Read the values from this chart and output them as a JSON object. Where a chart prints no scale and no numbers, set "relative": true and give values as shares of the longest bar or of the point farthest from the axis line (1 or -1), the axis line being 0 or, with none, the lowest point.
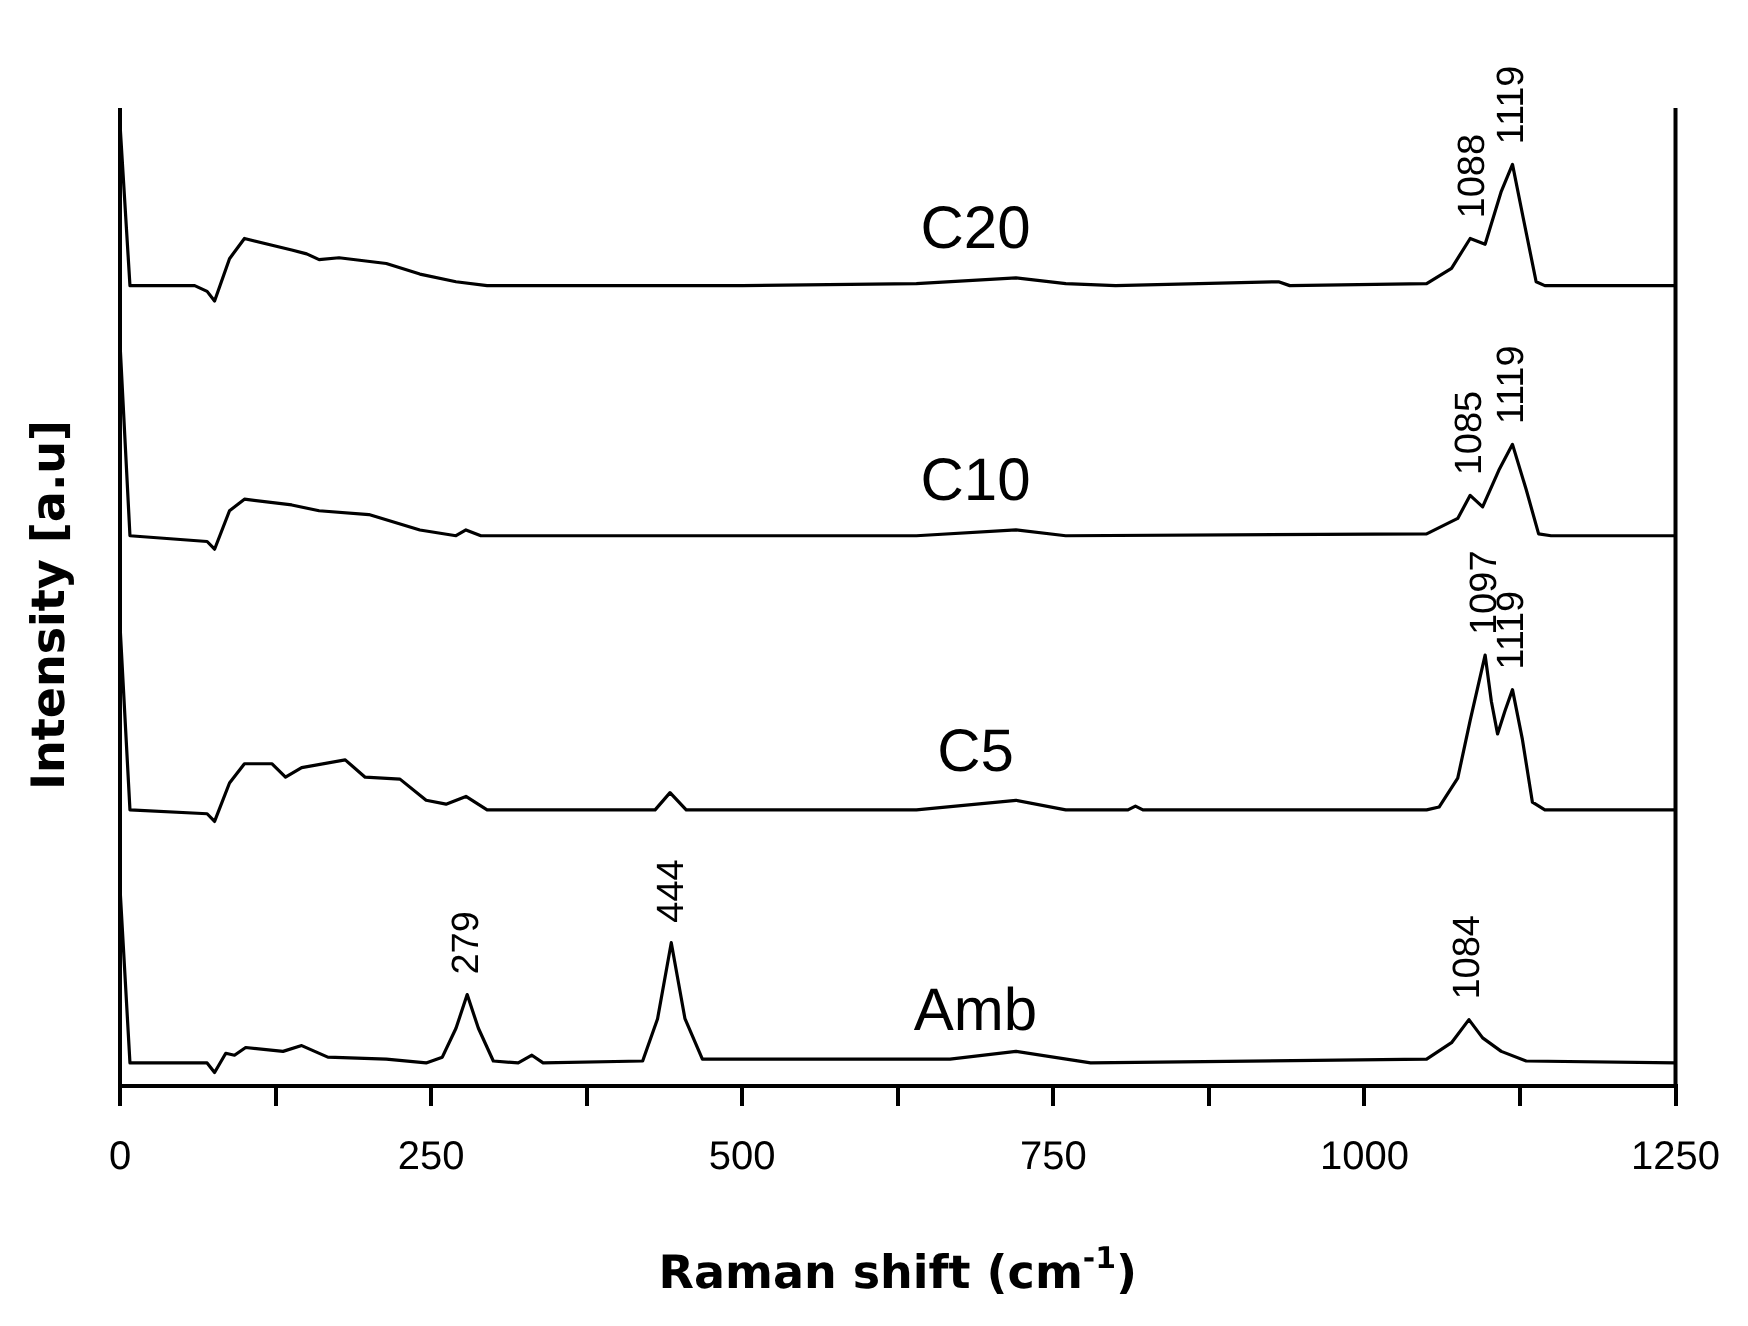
{
  "chart_data": {
    "type": "line",
    "relative": true,
    "xlabel": "Raman shift (cm$^{-1}$)",
    "ylabel": "Intensity [a.u]",
    "xlim": [
      0,
      1250
    ],
    "xticks": [
      0,
      {
        "value": 125,
        "label": null
      },
      250,
      {
        "value": 375,
        "label": null
      },
      500,
      {
        "value": 625,
        "label": null
      },
      750,
      {
        "value": 875,
        "label": null
      },
      1000,
      {
        "value": 1125,
        "label": null
      },
      1250
    ],
    "legend": false,
    "grid": false,
    "marker": "none",
    "line_style": "solid",
    "series": [
      {
        "name": "C20",
        "color": "#000000",
        "x": [
          0,
          8,
          60,
          70,
          76,
          88,
          100,
          138,
          150,
          160,
          176,
          214,
          241,
          270,
          295,
          500,
          640,
          720,
          760,
          800,
          931,
          940,
          1050,
          1070,
          1085,
          1097,
          1110,
          1119,
          1128,
          1138,
          1145,
          1250
        ],
        "values": [
          1.0,
          0.832,
          0.832,
          0.826,
          0.816,
          0.86,
          0.881,
          0.869,
          0.865,
          0.859,
          0.861,
          0.855,
          0.844,
          0.836,
          0.832,
          0.832,
          0.834,
          0.84,
          0.834,
          0.832,
          0.836,
          0.832,
          0.834,
          0.85,
          0.881,
          0.875,
          0.93,
          0.958,
          0.9,
          0.836,
          0.832,
          0.832
        ]
      },
      {
        "name": "C10",
        "color": "#000000",
        "x": [
          0,
          8,
          70,
          76,
          88,
          100,
          138,
          160,
          200,
          241,
          270,
          278,
          290,
          640,
          720,
          760,
          1050,
          1075,
          1085,
          1095,
          1108,
          1119,
          1130,
          1140,
          1150,
          1250
        ],
        "values": [
          0.772,
          0.572,
          0.566,
          0.558,
          0.598,
          0.61,
          0.604,
          0.598,
          0.594,
          0.578,
          0.572,
          0.578,
          0.572,
          0.572,
          0.578,
          0.572,
          0.574,
          0.59,
          0.614,
          0.602,
          0.64,
          0.667,
          0.62,
          0.574,
          0.572,
          0.572
        ]
      },
      {
        "name": "C5",
        "color": "#000000",
        "x": [
          0,
          8,
          70,
          76,
          88,
          100,
          122,
          133,
          146,
          181,
          197,
          225,
          246,
          262,
          278,
          295,
          430,
          442,
          455,
          640,
          720,
          760,
          810,
          816,
          822,
          1050,
          1060,
          1075,
          1085,
          1097,
          1102,
          1107,
          1113,
          1119,
          1127,
          1135,
          1145,
          1250
        ],
        "values": [
          0.479,
          0.287,
          0.283,
          0.275,
          0.315,
          0.335,
          0.335,
          0.321,
          0.331,
          0.339,
          0.321,
          0.319,
          0.297,
          0.293,
          0.301,
          0.287,
          0.287,
          0.305,
          0.287,
          0.287,
          0.297,
          0.287,
          0.287,
          0.291,
          0.287,
          0.287,
          0.29,
          0.32,
          0.38,
          0.448,
          0.4,
          0.366,
          0.39,
          0.412,
          0.36,
          0.295,
          0.287,
          0.287
        ]
      },
      {
        "name": "Amb",
        "color": "#000000",
        "x": [
          0,
          8,
          70,
          76,
          85,
          92,
          101,
          131,
          146,
          167,
          214,
          246,
          259,
          270,
          279,
          288,
          300,
          320,
          331,
          340,
          420,
          432,
          443,
          454,
          468,
          667,
          720,
          780,
          1050,
          1070,
          1084,
          1095,
          1110,
          1130,
          1250
        ],
        "values": [
          0.206,
          0.024,
          0.024,
          0.014,
          0.034,
          0.032,
          0.04,
          0.036,
          0.042,
          0.03,
          0.028,
          0.024,
          0.03,
          0.06,
          0.095,
          0.06,
          0.026,
          0.024,
          0.032,
          0.024,
          0.026,
          0.07,
          0.149,
          0.07,
          0.028,
          0.028,
          0.036,
          0.024,
          0.028,
          0.045,
          0.069,
          0.05,
          0.036,
          0.026,
          0.024
        ]
      }
    ],
    "annotations": [
      {
        "text": "279",
        "x": 279,
        "y": 0.095
      },
      {
        "text": "444",
        "x": 444,
        "y": 0.149
      },
      {
        "text": "1084",
        "x": 1084,
        "y": 0.069
      },
      {
        "text": "1097",
        "x": 1097,
        "y": 0.448
      },
      {
        "text": "1119",
        "x": 1119,
        "y": 0.412
      },
      {
        "text": "1085",
        "x": 1085,
        "y": 0.614
      },
      {
        "text": "1119",
        "x": 1119,
        "y": 0.667
      },
      {
        "text": "1088",
        "x": 1088,
        "y": 0.881
      },
      {
        "text": "1119",
        "x": 1119,
        "y": 0.958
      }
    ]
  }
}
